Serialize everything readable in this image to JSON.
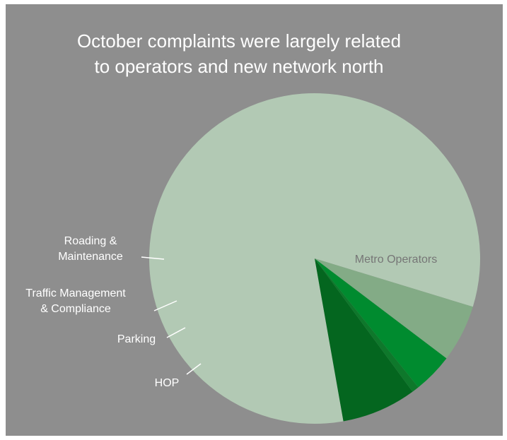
{
  "title_lines": [
    "October complaints were largely related",
    "to operators and new network north"
  ],
  "chart_data": {
    "type": "pie",
    "title": "October complaints were largely related to operators and new network north",
    "unit": "percent",
    "slices": [
      {
        "name": "Metro Operators",
        "label_lines": [
          "Metro Operators"
        ],
        "value": 82.5,
        "color": "#b2c9b4",
        "label_placement": "inside"
      },
      {
        "name": "Roading & Maintenance",
        "label_lines": [
          "Roading &",
          "Maintenance"
        ],
        "value": 7.3,
        "color": "#04661f",
        "label_placement": "outside"
      },
      {
        "name": "Traffic Management & Compliance",
        "label_lines": [
          "Traffic Management",
          "& Compliance"
        ],
        "value": 0.7,
        "color": "#0e782b",
        "label_placement": "outside"
      },
      {
        "name": "Parking",
        "label_lines": [
          "Parking"
        ],
        "value": 3.9,
        "color": "#008b2f",
        "label_placement": "outside"
      },
      {
        "name": "HOP",
        "label_lines": [
          "HOP"
        ],
        "value": 5.6,
        "color": "#83ab86",
        "label_placement": "outside"
      }
    ],
    "start_angle_deg": -17,
    "direction": "counterclockwise",
    "legend": "none",
    "colors": {
      "background": "#8e8e8e",
      "label": "#ffffff",
      "inside_label": "#767676"
    }
  }
}
